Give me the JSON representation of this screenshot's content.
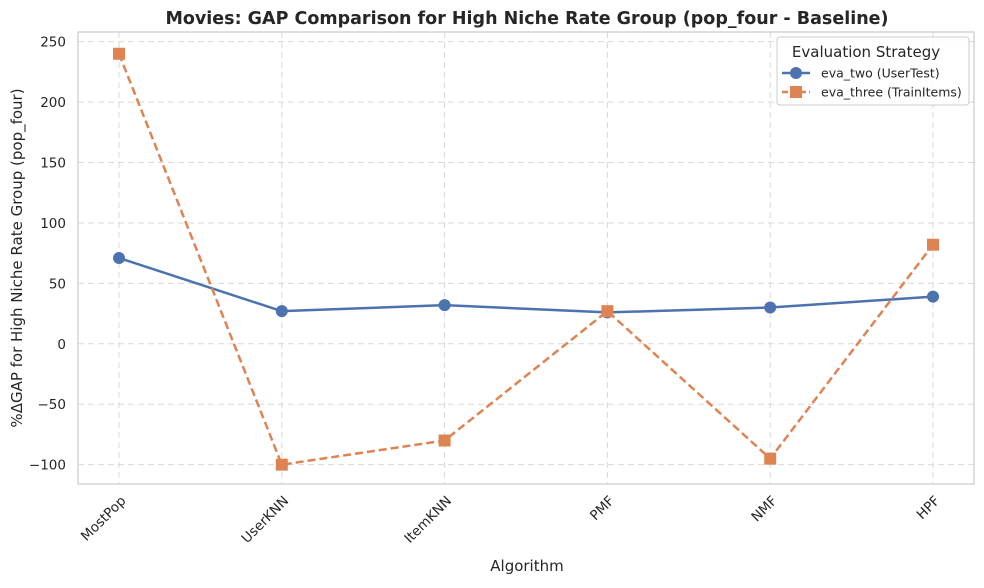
{
  "chart_data": {
    "type": "line",
    "title": "Movies: GAP Comparison for High Niche Rate Group (pop_four - Baseline)",
    "xlabel": "Algorithm",
    "ylabel": "%ΔGAP for High Niche Rate Group (pop_four)",
    "categories": [
      "MostPop",
      "UserKNN",
      "ItemKNN",
      "PMF",
      "NMF",
      "HPF"
    ],
    "ylim": [
      -116,
      258
    ],
    "yticks": [
      -100,
      -50,
      0,
      50,
      100,
      150,
      200,
      250
    ],
    "grid": true,
    "legend": {
      "title": "Evaluation Strategy",
      "placement": "top-right"
    },
    "series": [
      {
        "name": "eva_two (UserTest)",
        "values": [
          71,
          27,
          32,
          26,
          30,
          39
        ],
        "color": "#4c72b0",
        "marker": "circle",
        "line_style": "solid"
      },
      {
        "name": "eva_three (TrainItems)",
        "values": [
          240,
          -100,
          -80,
          27,
          -95,
          82
        ],
        "color": "#dd8452",
        "marker": "square",
        "line_style": "dashed"
      }
    ]
  }
}
